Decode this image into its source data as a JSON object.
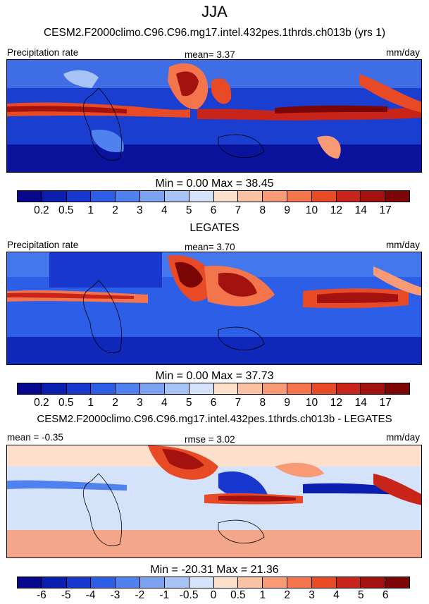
{
  "title": "JJA",
  "panels": [
    {
      "id": "model",
      "title": "CESM2.F2000climo.C96.C96.mg17.intel.432pes.1thrds.ch013b (yrs 1)",
      "left_label": "Precipitation rate",
      "mid_label": "mean=   3.37",
      "right_label": "mm/day",
      "minmax": "Min =   0.00 Max =  38.45",
      "colors": [
        "#08088f",
        "#0a1fb0",
        "#1737cf",
        "#2c5ee8",
        "#4f82ee",
        "#7ba3f2",
        "#a7c3f6",
        "#d4e2fa",
        "#fde0cc",
        "#fbc1a3",
        "#f89b74",
        "#f4744c",
        "#e94a26",
        "#c9241a",
        "#a3120f",
        "#7c0606"
      ],
      "ticks": [
        "0.2",
        "0.5",
        "1",
        "2",
        "3",
        "4",
        "5",
        "6",
        "7",
        "8",
        "9",
        "10",
        "12",
        "14",
        "17"
      ]
    },
    {
      "id": "obs",
      "title": "LEGATES",
      "left_label": "Precipitation rate",
      "mid_label": "mean=   3.70",
      "right_label": "mm/day",
      "minmax": "Min =   0.00 Max =  37.73",
      "colors": [
        "#08088f",
        "#0a1fb0",
        "#1737cf",
        "#2c5ee8",
        "#4f82ee",
        "#7ba3f2",
        "#a7c3f6",
        "#d4e2fa",
        "#fde0cc",
        "#fbc1a3",
        "#f89b74",
        "#f4744c",
        "#e94a26",
        "#c9241a",
        "#a3120f",
        "#7c0606"
      ],
      "ticks": [
        "0.2",
        "0.5",
        "1",
        "2",
        "3",
        "4",
        "5",
        "6",
        "7",
        "8",
        "9",
        "10",
        "12",
        "14",
        "17"
      ]
    },
    {
      "id": "diff",
      "title": "CESM2.F2000climo.C96.C96.mg17.intel.432pes.1thrds.ch013b - LEGATES",
      "left_label": "mean =  -0.35",
      "mid_label": "rmse =   3.02",
      "right_label": "mm/day",
      "minmax": "Min = -20.31 Max =  21.36",
      "colors": [
        "#08088f",
        "#0a1fb0",
        "#1737cf",
        "#2c5ee8",
        "#4f82ee",
        "#7ba3f2",
        "#a7c3f6",
        "#d4e2fa",
        "#fde0cc",
        "#fbc1a3",
        "#f89b74",
        "#f4744c",
        "#e94a26",
        "#c9241a",
        "#a3120f",
        "#7c0606"
      ],
      "ticks": [
        "-6",
        "-5",
        "-4",
        "-3",
        "-2",
        "-1",
        "-0.5",
        "0",
        "0.5",
        "1",
        "2",
        "3",
        "4",
        "5",
        "6"
      ]
    }
  ],
  "chart_data": [
    {
      "type": "heatmap",
      "title": "CESM2.F2000climo.C96.C96.mg17.intel.432pes.1thrds.ch013b (yrs 1)",
      "variable": "Precipitation rate",
      "units": "mm/day",
      "season": "JJA",
      "mean": 3.37,
      "min": 0.0,
      "max": 38.45,
      "levels": [
        0.2,
        0.5,
        1,
        2,
        3,
        4,
        5,
        6,
        7,
        8,
        9,
        10,
        12,
        14,
        17
      ]
    },
    {
      "type": "heatmap",
      "title": "LEGATES",
      "variable": "Precipitation rate",
      "units": "mm/day",
      "season": "JJA",
      "mean": 3.7,
      "min": 0.0,
      "max": 37.73,
      "levels": [
        0.2,
        0.5,
        1,
        2,
        3,
        4,
        5,
        6,
        7,
        8,
        9,
        10,
        12,
        14,
        17
      ]
    },
    {
      "type": "heatmap",
      "title": "CESM2.F2000climo.C96.C96.mg17.intel.432pes.1thrds.ch013b - LEGATES",
      "units": "mm/day",
      "season": "JJA",
      "mean": -0.35,
      "rmse": 3.02,
      "min": -20.31,
      "max": 21.36,
      "levels": [
        -6,
        -5,
        -4,
        -3,
        -2,
        -1,
        -0.5,
        0,
        0.5,
        1,
        2,
        3,
        4,
        5,
        6
      ]
    }
  ]
}
